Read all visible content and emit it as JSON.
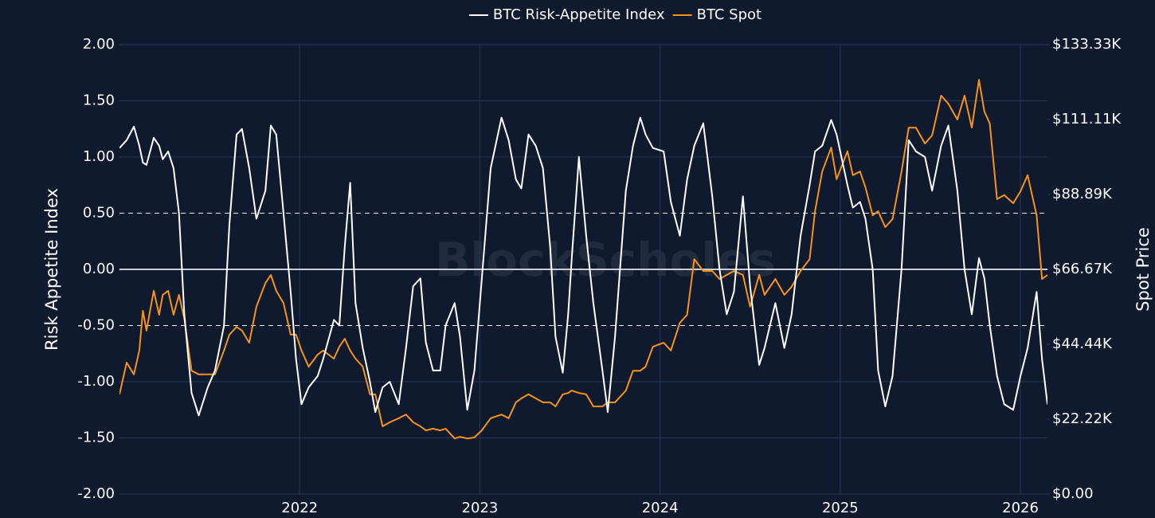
{
  "chart_data": {
    "type": "line",
    "watermark": "BlockScholes",
    "ylabel": "Risk Appetite Index",
    "y2label": "Spot Price",
    "legend": "top",
    "grid": true,
    "xlim": [
      2021.0,
      2026.15
    ],
    "xticks": [
      2022,
      2023,
      2024,
      2025,
      2026
    ],
    "ylim": [
      -2,
      2
    ],
    "yticks": [
      {
        "value": 2,
        "label": "2.00"
      },
      {
        "value": 1.5,
        "label": "1.50"
      },
      {
        "value": 1,
        "label": "1.00"
      },
      {
        "value": 0.5,
        "label": "0.50"
      },
      {
        "value": 0,
        "label": "0.00"
      },
      {
        "value": -0.5,
        "label": "-0.50"
      },
      {
        "value": -1,
        "label": "-1.00"
      },
      {
        "value": -1.5,
        "label": "-1.50"
      },
      {
        "value": -2,
        "label": "-2.00"
      }
    ],
    "y2lim": [
      0,
      133333.33
    ],
    "y2ticks": [
      {
        "value": 133333.33,
        "label": "$133.33K"
      },
      {
        "value": 111111.11,
        "label": "$111.11K"
      },
      {
        "value": 88888.89,
        "label": "$88.89K"
      },
      {
        "value": 66666.67,
        "label": "$66.67K"
      },
      {
        "value": 44444.44,
        "label": "$44.44K"
      },
      {
        "value": 22222.22,
        "label": "$22.22K"
      },
      {
        "value": 0,
        "label": "$0.00"
      }
    ],
    "reference_lines": [
      {
        "value": 0.5,
        "style": "dashed"
      },
      {
        "value": 0,
        "style": "solid"
      },
      {
        "value": -0.5,
        "style": "dashed"
      }
    ],
    "x": [
      2021.0,
      2021.04,
      2021.08,
      2021.11,
      2021.13,
      2021.15,
      2021.19,
      2021.22,
      2021.24,
      2021.27,
      2021.3,
      2021.33,
      2021.36,
      2021.4,
      2021.44,
      2021.49,
      2021.53,
      2021.58,
      2021.61,
      2021.65,
      2021.68,
      2021.72,
      2021.76,
      2021.81,
      2021.84,
      2021.87,
      2021.91,
      2021.95,
      2021.98,
      2022.01,
      2022.05,
      2022.1,
      2022.13,
      2022.19,
      2022.22,
      2022.25,
      2022.28,
      2022.31,
      2022.35,
      2022.39,
      2022.42,
      2022.46,
      2022.5,
      2022.55,
      2022.59,
      2022.63,
      2022.67,
      2022.7,
      2022.74,
      2022.78,
      2022.81,
      2022.86,
      2022.89,
      2022.93,
      2022.97,
      2023.01,
      2023.06,
      2023.12,
      2023.16,
      2023.2,
      2023.23,
      2023.27,
      2023.31,
      2023.35,
      2023.39,
      2023.42,
      2023.46,
      2023.49,
      2023.51,
      2023.55,
      2023.59,
      2023.63,
      2023.68,
      2023.71,
      2023.75,
      2023.81,
      2023.85,
      2023.89,
      2023.92,
      2023.96,
      2024.02,
      2024.06,
      2024.11,
      2024.15,
      2024.19,
      2024.24,
      2024.29,
      2024.33,
      2024.37,
      2024.41,
      2024.46,
      2024.5,
      2024.55,
      2024.58,
      2024.64,
      2024.69,
      2024.73,
      2024.78,
      2024.83,
      2024.86,
      2024.9,
      2024.95,
      2024.98,
      2025.04,
      2025.07,
      2025.11,
      2025.14,
      2025.18,
      2025.21,
      2025.25,
      2025.29,
      2025.34,
      2025.38,
      2025.42,
      2025.47,
      2025.51,
      2025.56,
      2025.6,
      2025.65,
      2025.69,
      2025.73,
      2025.77,
      2025.8,
      2025.83,
      2025.87,
      2025.91,
      2025.96,
      2026.0,
      2026.04,
      2026.09,
      2026.12,
      2026.15
    ],
    "series": [
      {
        "name": "BTC Risk-Appetite Index",
        "color": "#ffffff",
        "axis": "y",
        "values": [
          1.08,
          1.15,
          1.27,
          1.1,
          0.95,
          0.93,
          1.17,
          1.1,
          0.98,
          1.05,
          0.9,
          0.5,
          -0.4,
          -1.1,
          -1.3,
          -1.05,
          -0.9,
          -0.5,
          0.4,
          1.2,
          1.25,
          0.9,
          0.45,
          0.7,
          1.28,
          1.2,
          0.5,
          -0.2,
          -0.8,
          -1.2,
          -1.05,
          -0.95,
          -0.8,
          -0.45,
          -0.5,
          0.2,
          0.77,
          -0.3,
          -0.7,
          -1.0,
          -1.27,
          -1.05,
          -1.0,
          -1.2,
          -0.7,
          -0.15,
          -0.08,
          -0.65,
          -0.9,
          -0.9,
          -0.5,
          -0.3,
          -0.6,
          -1.25,
          -0.9,
          -0.1,
          0.9,
          1.35,
          1.15,
          0.8,
          0.72,
          1.2,
          1.1,
          0.9,
          0.2,
          -0.6,
          -0.92,
          -0.4,
          0.1,
          1.0,
          0.3,
          -0.3,
          -0.9,
          -1.27,
          -0.6,
          0.7,
          1.1,
          1.35,
          1.2,
          1.08,
          1.05,
          0.6,
          0.3,
          0.8,
          1.1,
          1.3,
          0.65,
          0.0,
          -0.4,
          -0.2,
          0.65,
          -0.15,
          -0.85,
          -0.7,
          -0.3,
          -0.7,
          -0.4,
          0.3,
          0.75,
          1.05,
          1.1,
          1.33,
          1.2,
          0.75,
          0.55,
          0.6,
          0.45,
          0.0,
          -0.9,
          -1.22,
          -0.95,
          0.0,
          1.15,
          1.05,
          1.0,
          0.7,
          1.1,
          1.28,
          0.7,
          0.0,
          -0.4,
          0.1,
          -0.08,
          -0.5,
          -0.95,
          -1.2,
          -1.25,
          -0.95,
          -0.7,
          -0.2,
          -0.8,
          -1.2
        ]
      },
      {
        "name": "BTC Spot",
        "color": "#f7931a",
        "axis": "y2",
        "values": [
          29600,
          39000,
          35500,
          42600,
          54400,
          48500,
          60300,
          53200,
          59100,
          60300,
          53200,
          59100,
          52000,
          36600,
          35500,
          35500,
          35500,
          42600,
          47300,
          49600,
          48500,
          44900,
          55600,
          62600,
          65000,
          60300,
          56700,
          47300,
          47300,
          42600,
          37800,
          41400,
          42600,
          40200,
          43700,
          46100,
          42600,
          40200,
          37800,
          29600,
          29600,
          20100,
          21300,
          22500,
          23600,
          21300,
          20100,
          18900,
          19400,
          18900,
          19400,
          16500,
          17000,
          16500,
          16800,
          18900,
          22500,
          23600,
          22500,
          27200,
          28400,
          29600,
          28400,
          27200,
          27200,
          26000,
          29600,
          30000,
          30700,
          30000,
          29600,
          26000,
          26000,
          27200,
          27200,
          30700,
          36600,
          36600,
          37800,
          43700,
          44900,
          42600,
          50800,
          53200,
          69700,
          66200,
          66200,
          63800,
          65000,
          66200,
          65000,
          55600,
          65000,
          59100,
          63800,
          59100,
          61500,
          66200,
          69700,
          83900,
          95700,
          102800,
          93400,
          101700,
          94600,
          95700,
          91000,
          82700,
          83900,
          79200,
          81600,
          95700,
          108700,
          108700,
          104000,
          106400,
          118200,
          115800,
          111100,
          118200,
          108700,
          122900,
          113500,
          109900,
          87500,
          88700,
          86300,
          89800,
          94600,
          82700,
          63800,
          65000
        ]
      }
    ]
  }
}
